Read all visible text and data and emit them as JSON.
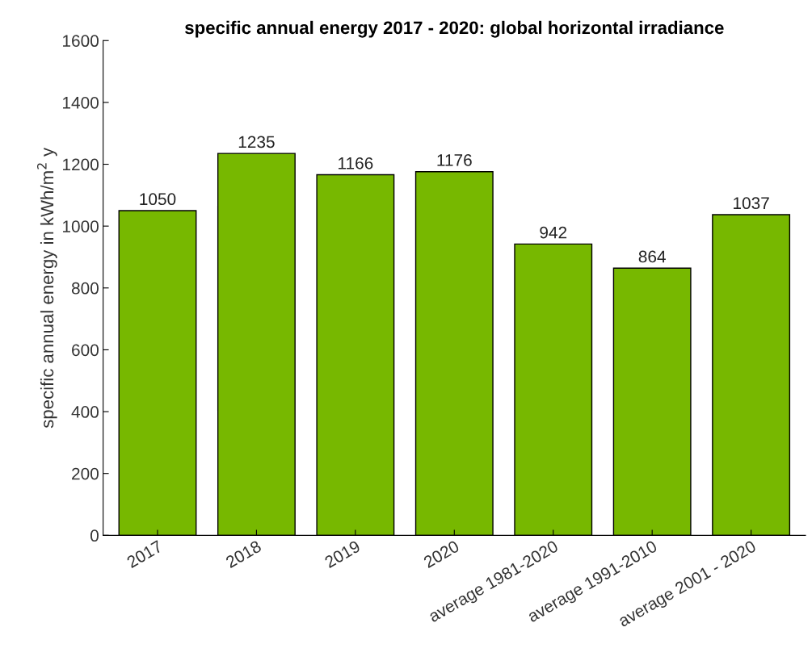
{
  "chart_data": {
    "type": "bar",
    "title": "specific annual energy 2017 - 2020: global horizontal irradiance",
    "ylabel": "specific annual energy in kWh/m$^{2}$ y",
    "categories": [
      "2017",
      "2018",
      "2019",
      "2020",
      "average 1981-2020",
      "average 1991-2010",
      "average 2001 - 2020"
    ],
    "values": [
      1050,
      1235,
      1166,
      1176,
      942,
      864,
      1037
    ],
    "color": "#77b800",
    "ylim": [
      0,
      1600
    ],
    "yticks": [
      0,
      200,
      400,
      600,
      800,
      1000,
      1200,
      1400,
      1600
    ],
    "data_labels": true,
    "grid": false
  }
}
